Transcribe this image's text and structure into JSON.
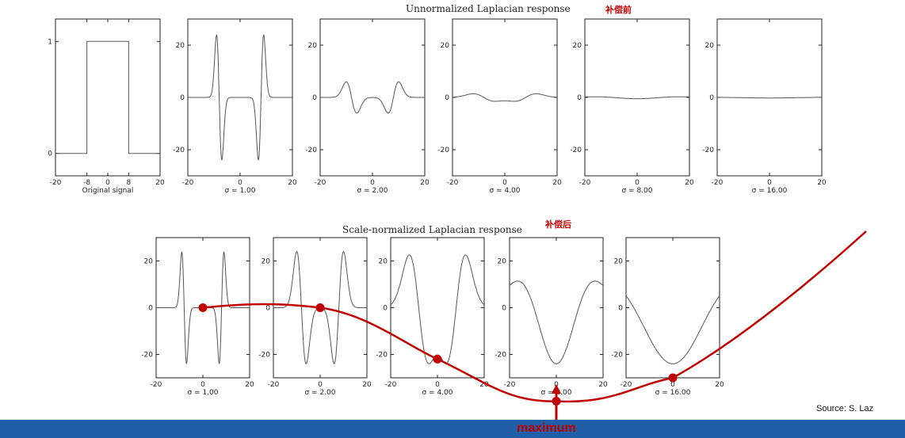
{
  "colors": {
    "accent": "#c00000",
    "bar": "#1f5fa8",
    "signal": "#555555",
    "frame": "#222222"
  },
  "top": {
    "title": "Unnormalized Laplacian response",
    "annotation_cn": "补偿前"
  },
  "bottom": {
    "title": "Scale-normalized Laplacian response",
    "annotation_cn": "补偿后"
  },
  "maximum_label": "maximum",
  "source": "Source:  S. Laz",
  "chart_data": [
    {
      "type": "line",
      "row": "top",
      "xlabel": "Original signal",
      "xlim": [
        -20,
        20
      ],
      "ylim": [
        -0.2,
        1.2
      ],
      "xticks": [
        "-20",
        "-8",
        "0",
        "8",
        "20"
      ],
      "xtickvals": [
        -20,
        -8,
        0,
        8,
        20
      ],
      "yticks": [
        "0",
        "1"
      ],
      "ytickvals": [
        0,
        1
      ],
      "curve": "box",
      "params": {
        "low": 0,
        "high": 1,
        "edge": 8
      }
    },
    {
      "type": "line",
      "row": "top",
      "xlabel": "σ = 1.00",
      "xlim": [
        -20,
        20
      ],
      "ylim": [
        -30,
        30
      ],
      "xticks": [
        "-20",
        "0",
        "20"
      ],
      "xtickvals": [
        -20,
        0,
        20
      ],
      "yticks": [
        "20",
        "0",
        "-20"
      ],
      "ytickvals": [
        20,
        0,
        -20
      ],
      "curve": "log",
      "params": {
        "sigma": 1,
        "amp": 24
      }
    },
    {
      "type": "line",
      "row": "top",
      "xlabel": "σ = 2.00",
      "xlim": [
        -20,
        20
      ],
      "ylim": [
        -30,
        30
      ],
      "xticks": [
        "-20",
        "0",
        "20"
      ],
      "xtickvals": [
        -20,
        0,
        20
      ],
      "yticks": [
        "20",
        "0",
        "-20"
      ],
      "ytickvals": [
        20,
        0,
        -20
      ],
      "curve": "log",
      "params": {
        "sigma": 2,
        "amp": 6
      }
    },
    {
      "type": "line",
      "row": "top",
      "xlabel": "σ = 4.00",
      "xlim": [
        -20,
        20
      ],
      "ylim": [
        -30,
        30
      ],
      "xticks": [
        "-20",
        "0",
        "20"
      ],
      "xtickvals": [
        -20,
        0,
        20
      ],
      "yticks": [
        "20",
        "0",
        "-20"
      ],
      "ytickvals": [
        20,
        0,
        -20
      ],
      "curve": "log",
      "params": {
        "sigma": 4,
        "amp": 1.5
      }
    },
    {
      "type": "line",
      "row": "top",
      "xlabel": "σ = 8.00",
      "xlim": [
        -20,
        20
      ],
      "ylim": [
        -30,
        30
      ],
      "xticks": [
        "-20",
        "0",
        "20"
      ],
      "xtickvals": [
        -20,
        0,
        20
      ],
      "yticks": [
        "20",
        "0",
        "-20"
      ],
      "ytickvals": [
        20,
        0,
        -20
      ],
      "curve": "log",
      "params": {
        "sigma": 8,
        "amp": 0.5
      }
    },
    {
      "type": "line",
      "row": "top",
      "xlabel": "σ = 16.00",
      "xlim": [
        -20,
        20
      ],
      "ylim": [
        -30,
        30
      ],
      "xticks": [
        "-20",
        "0",
        "20"
      ],
      "xtickvals": [
        -20,
        0,
        20
      ],
      "yticks": [
        "20",
        "0",
        "-20"
      ],
      "ytickvals": [
        20,
        0,
        -20
      ],
      "curve": "log",
      "params": {
        "sigma": 16,
        "amp": 0.2
      }
    },
    {
      "type": "line",
      "row": "bottom",
      "xlabel": "σ = 1.00",
      "xlim": [
        -20,
        20
      ],
      "ylim": [
        -30,
        30
      ],
      "xticks": [
        "-20",
        "0",
        "20"
      ],
      "xtickvals": [
        -20,
        0,
        20
      ],
      "yticks": [
        "20",
        "0",
        "-20"
      ],
      "ytickvals": [
        20,
        0,
        -20
      ],
      "curve": "log",
      "params": {
        "sigma": 1,
        "amp": 24
      }
    },
    {
      "type": "line",
      "row": "bottom",
      "xlabel": "σ = 2.00",
      "xlim": [
        -20,
        20
      ],
      "ylim": [
        -30,
        30
      ],
      "xticks": [
        "-20",
        "0",
        "20"
      ],
      "xtickvals": [
        -20,
        0,
        20
      ],
      "yticks": [
        "20",
        "0",
        "-20"
      ],
      "ytickvals": [
        20,
        0,
        -20
      ],
      "curve": "log",
      "params": {
        "sigma": 2,
        "amp": 24
      }
    },
    {
      "type": "line",
      "row": "bottom",
      "xlabel": "σ = 4.00",
      "xlim": [
        -20,
        20
      ],
      "ylim": [
        -30,
        30
      ],
      "xticks": [
        "-20",
        "0",
        "20"
      ],
      "xtickvals": [
        -20,
        0,
        20
      ],
      "yticks": [
        "20",
        "0",
        "-20"
      ],
      "ytickvals": [
        20,
        0,
        -20
      ],
      "curve": "log",
      "params": {
        "sigma": 4,
        "amp": 24
      }
    },
    {
      "type": "line",
      "row": "bottom",
      "xlabel": "σ = 8.00",
      "xlim": [
        -20,
        20
      ],
      "ylim": [
        -30,
        30
      ],
      "xticks": [
        "-20",
        "0",
        "20"
      ],
      "xtickvals": [
        -20,
        0,
        20
      ],
      "yticks": [
        "20",
        "0",
        "-20"
      ],
      "ytickvals": [
        20,
        0,
        -20
      ],
      "curve": "log",
      "params": {
        "sigma": 8,
        "amp": 24
      }
    },
    {
      "type": "line",
      "row": "bottom",
      "xlabel": "σ = 16.00",
      "xlim": [
        -20,
        20
      ],
      "ylim": [
        -30,
        30
      ],
      "xticks": [
        "-20",
        "0",
        "20"
      ],
      "xtickvals": [
        -20,
        0,
        20
      ],
      "yticks": [
        "20",
        "0",
        "-20"
      ],
      "ytickvals": [
        20,
        0,
        -20
      ],
      "curve": "log",
      "params": {
        "sigma": 16,
        "amp": 24
      }
    }
  ],
  "response_curve": {
    "sigma": [
      1,
      2,
      4,
      8,
      16
    ],
    "response_at_center": [
      0,
      0,
      -22,
      -40,
      -30
    ]
  }
}
